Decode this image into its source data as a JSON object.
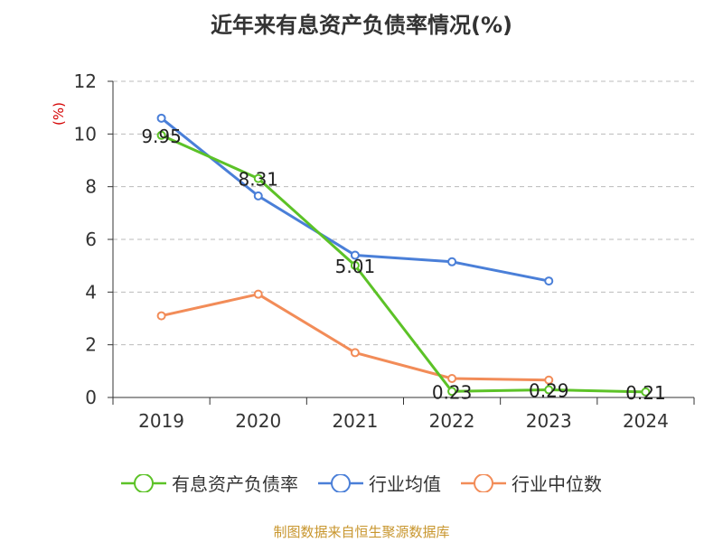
{
  "chart_data": {
    "type": "line",
    "title": "近年来有息资产负债率情况(%)",
    "ylabel": "(%)",
    "categories": [
      "2019",
      "2020",
      "2021",
      "2022",
      "2023",
      "2024"
    ],
    "ylim": [
      0,
      12
    ],
    "yticks": [
      0,
      2,
      4,
      6,
      8,
      10,
      12
    ],
    "grid": true,
    "legend_position": "bottom",
    "series": [
      {
        "name": "有息资产负债率",
        "color": "#5cc227",
        "values": [
          9.95,
          8.31,
          5.01,
          0.23,
          0.29,
          0.21
        ],
        "labels": [
          "9.95",
          "8.31",
          "5.01",
          "0.23",
          "0.29",
          "0.21"
        ]
      },
      {
        "name": "行业均值",
        "color": "#4a7fd8",
        "values": [
          10.6,
          7.65,
          5.4,
          5.15,
          4.42,
          null
        ]
      },
      {
        "name": "行业中位数",
        "color": "#f28c58",
        "values": [
          3.1,
          3.92,
          1.7,
          0.72,
          0.66,
          null
        ]
      }
    ]
  },
  "source_note": "制图数据来自恒生聚源数据库"
}
